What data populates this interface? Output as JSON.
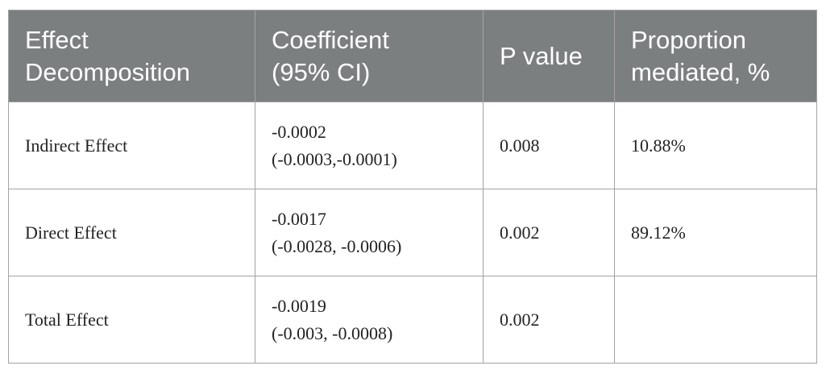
{
  "table": {
    "header": [
      [
        "Effect",
        "Decomposition"
      ],
      [
        "Coefficient",
        "(95% CI)"
      ],
      [
        "P value"
      ],
      [
        "Proportion",
        "mediated, %"
      ]
    ],
    "rows": [
      [
        [
          "Indirect Effect"
        ],
        [
          "-0.0002",
          "(-0.0003,-0.0001)"
        ],
        [
          "0.008"
        ],
        [
          "10.88%"
        ]
      ],
      [
        [
          "Direct Effect"
        ],
        [
          "-0.0017",
          "(-0.0028, -0.0006)"
        ],
        [
          "0.002"
        ],
        [
          "89.12%"
        ]
      ],
      [
        [
          "Total Effect"
        ],
        [
          "-0.0019",
          "(-0.003, -0.0008)"
        ],
        [
          "0.002"
        ]
      ]
    ]
  }
}
